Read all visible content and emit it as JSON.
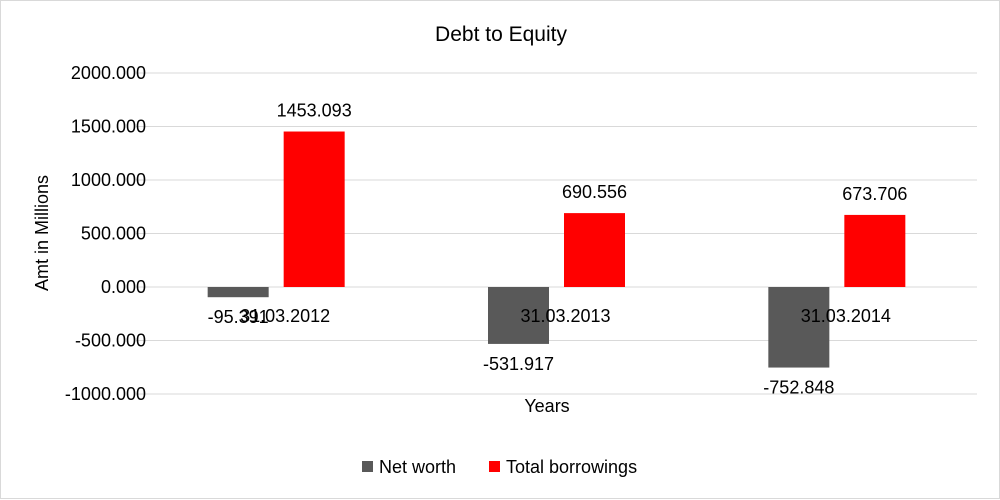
{
  "chart_data": {
    "type": "bar",
    "title": "Debt to Equity",
    "xlabel": "Years",
    "ylabel": "Amt in Millions",
    "categories": [
      "31.03.2012",
      "31.03.2013",
      "31.03.2014"
    ],
    "series": [
      {
        "name": "Net worth",
        "color": "#595959",
        "values": [
          -95.391,
          -531.917,
          -752.848
        ]
      },
      {
        "name": "Total borrowings",
        "color": "#ff0000",
        "values": [
          1453.093,
          690.556,
          673.706
        ]
      }
    ],
    "y_ticks": [
      "2000.000",
      "1500.000",
      "1000.000",
      "500.000",
      "0.000",
      "-500.000",
      "-1000.000"
    ],
    "ylim": [
      -1000,
      2000
    ],
    "grid": true,
    "legend_position": "bottom"
  }
}
